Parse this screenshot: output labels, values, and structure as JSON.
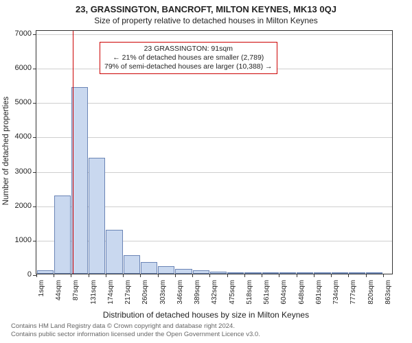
{
  "title_main": "23, GRASSINGTON, BANCROFT, MILTON KEYNES, MK13 0QJ",
  "title_sub": "Size of property relative to detached houses in Milton Keynes",
  "ylabel": "Number of detached properties",
  "xlabel": "Distribution of detached houses by size in Milton Keynes",
  "chart": {
    "type": "bar",
    "background_color": "#ffffff",
    "grid_color": "#cfcfcf",
    "border_color": "#333333",
    "bar_fill": "#c9d8ef",
    "bar_border": "#6a84b5",
    "vline_color": "#cc0000",
    "annot_border": "#cc0000",
    "ylim": [
      0,
      7100
    ],
    "yticks": [
      0,
      1000,
      2000,
      3000,
      4000,
      5000,
      6000,
      7000
    ],
    "xlim_bins": [
      0,
      20.6
    ],
    "bin_width_sqm": 43,
    "bin_edges_sqm": [
      1,
      44,
      87,
      131,
      174,
      217,
      260,
      303,
      346,
      389,
      432,
      475,
      518,
      561,
      604,
      648,
      691,
      734,
      777,
      820,
      863
    ],
    "counts": [
      95,
      2280,
      5420,
      3380,
      1280,
      530,
      340,
      210,
      140,
      95,
      55,
      40,
      30,
      22,
      16,
      12,
      9,
      7,
      5,
      4
    ],
    "marker_value_sqm": 91,
    "xtick_fontsize": 10,
    "ytick_fontsize": 11,
    "label_fontsize": 12
  },
  "annotation": {
    "line1": "23 GRASSINGTON: 91sqm",
    "line2": "← 21% of detached houses are smaller (2,789)",
    "line3": "79% of semi-detached houses are larger (10,388) →"
  },
  "footer": {
    "line1": "Contains HM Land Registry data © Crown copyright and database right 2024.",
    "line2": "Contains public sector information licensed under the Open Government Licence v3.0."
  }
}
